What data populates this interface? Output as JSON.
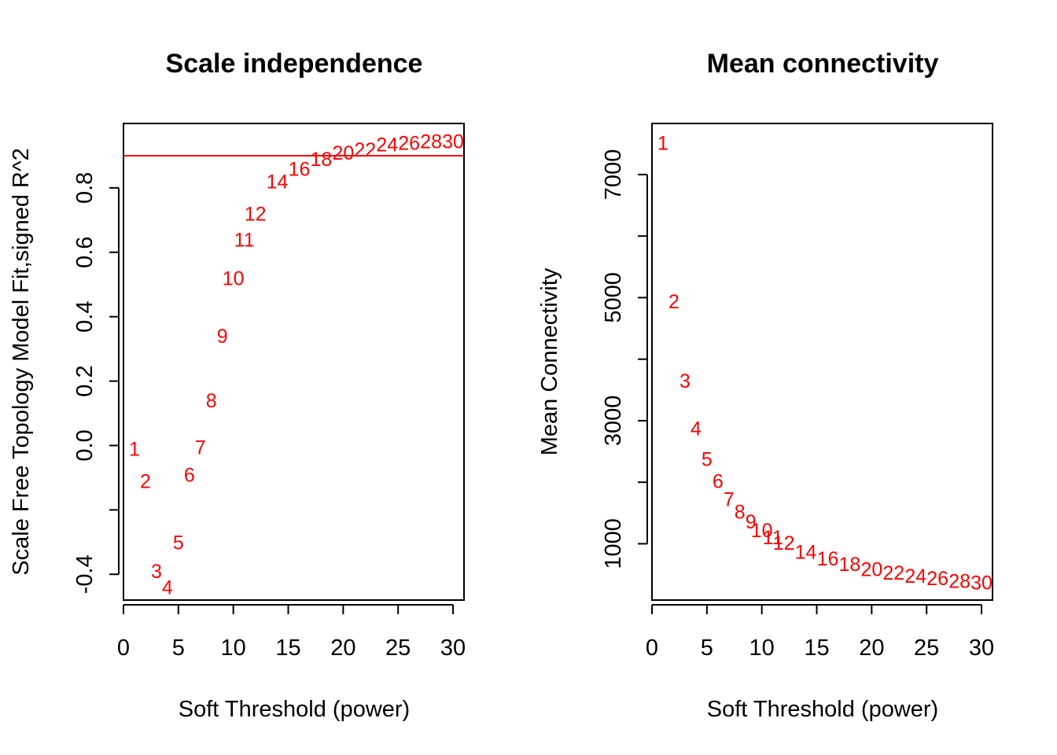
{
  "chart_data": [
    {
      "type": "scatter",
      "title": "Scale independence",
      "xlabel": "Soft Threshold (power)",
      "ylabel": "Scale Free Topology Model Fit,signed R^2",
      "xlim": [
        0,
        31
      ],
      "ylim": [
        -0.48,
        1.0
      ],
      "xticks": [
        0,
        5,
        10,
        15,
        20,
        25,
        30
      ],
      "yticks": [
        -0.4,
        -0.2,
        0.0,
        0.2,
        0.4,
        0.6,
        0.8
      ],
      "ytick_labels": [
        "-0.4",
        "",
        "0.0",
        "0.2",
        "0.4",
        "0.6",
        "0.8"
      ],
      "hline": 0.9,
      "point_color": "#ff0000",
      "line_color": "#ff0000",
      "marker": "text labels of power",
      "points": [
        {
          "x": 1,
          "y": -0.01,
          "label": "1"
        },
        {
          "x": 2,
          "y": -0.11,
          "label": "2"
        },
        {
          "x": 3,
          "y": -0.39,
          "label": "3"
        },
        {
          "x": 4,
          "y": -0.44,
          "label": "4"
        },
        {
          "x": 5,
          "y": -0.3,
          "label": "5"
        },
        {
          "x": 6,
          "y": -0.09,
          "label": "6"
        },
        {
          "x": 7,
          "y": -0.005,
          "label": "7"
        },
        {
          "x": 8,
          "y": 0.14,
          "label": "8"
        },
        {
          "x": 9,
          "y": 0.34,
          "label": "9"
        },
        {
          "x": 10,
          "y": 0.52,
          "label": "10"
        },
        {
          "x": 11,
          "y": 0.64,
          "label": "11"
        },
        {
          "x": 12,
          "y": 0.72,
          "label": "12"
        },
        {
          "x": 14,
          "y": 0.82,
          "label": "14"
        },
        {
          "x": 16,
          "y": 0.86,
          "label": "16"
        },
        {
          "x": 18,
          "y": 0.89,
          "label": "18"
        },
        {
          "x": 20,
          "y": 0.91,
          "label": "20"
        },
        {
          "x": 22,
          "y": 0.92,
          "label": "22"
        },
        {
          "x": 24,
          "y": 0.935,
          "label": "24"
        },
        {
          "x": 26,
          "y": 0.94,
          "label": "26"
        },
        {
          "x": 28,
          "y": 0.945,
          "label": "28"
        },
        {
          "x": 30,
          "y": 0.945,
          "label": "30"
        }
      ]
    },
    {
      "type": "scatter",
      "title": "Mean connectivity",
      "xlabel": "Soft Threshold (power)",
      "ylabel": "Mean Connectivity",
      "xlim": [
        0,
        31
      ],
      "ylim": [
        85,
        7830
      ],
      "xticks": [
        0,
        5,
        10,
        15,
        20,
        25,
        30
      ],
      "yticks": [
        1000,
        2000,
        3000,
        4000,
        5000,
        6000,
        7000
      ],
      "ytick_labels": [
        "1000",
        "",
        "3000",
        "",
        "5000",
        "",
        "7000"
      ],
      "point_color": "#ff0000",
      "marker": "text labels of power",
      "points": [
        {
          "x": 1,
          "y": 7520,
          "label": "1"
        },
        {
          "x": 2,
          "y": 4940,
          "label": "2"
        },
        {
          "x": 3,
          "y": 3650,
          "label": "3"
        },
        {
          "x": 4,
          "y": 2880,
          "label": "4"
        },
        {
          "x": 5,
          "y": 2380,
          "label": "5"
        },
        {
          "x": 6,
          "y": 2020,
          "label": "6"
        },
        {
          "x": 7,
          "y": 1730,
          "label": "7"
        },
        {
          "x": 8,
          "y": 1520,
          "label": "8"
        },
        {
          "x": 9,
          "y": 1360,
          "label": "9"
        },
        {
          "x": 10,
          "y": 1220,
          "label": "10"
        },
        {
          "x": 11,
          "y": 1110,
          "label": "11"
        },
        {
          "x": 12,
          "y": 1020,
          "label": "12"
        },
        {
          "x": 14,
          "y": 870,
          "label": "14"
        },
        {
          "x": 16,
          "y": 760,
          "label": "16"
        },
        {
          "x": 18,
          "y": 670,
          "label": "18"
        },
        {
          "x": 20,
          "y": 590,
          "label": "20"
        },
        {
          "x": 22,
          "y": 530,
          "label": "22"
        },
        {
          "x": 24,
          "y": 480,
          "label": "24"
        },
        {
          "x": 26,
          "y": 440,
          "label": "26"
        },
        {
          "x": 28,
          "y": 400,
          "label": "28"
        },
        {
          "x": 30,
          "y": 370,
          "label": "30"
        }
      ]
    }
  ]
}
